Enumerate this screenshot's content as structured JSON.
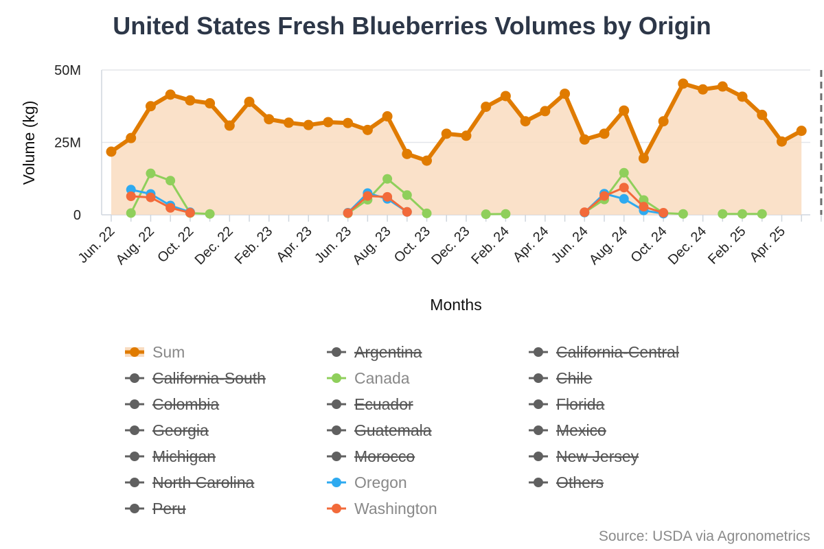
{
  "chart_data": {
    "type": "line",
    "title": "United States Fresh Blueberries Volumes by Origin",
    "xlabel": "Months",
    "ylabel": "Volume (kg)",
    "ylim": [
      0,
      50000000
    ],
    "y_ticks": [
      {
        "value": 0,
        "label": "0"
      },
      {
        "value": 25000000,
        "label": "25M"
      },
      {
        "value": 50000000,
        "label": "50M"
      }
    ],
    "x_tick_labels": [
      "Jun. 22",
      "Aug. 22",
      "Oct. 22",
      "Dec. 22",
      "Feb. 23",
      "Apr. 23",
      "Jun. 23",
      "Aug. 23",
      "Oct. 23",
      "Dec. 23",
      "Feb. 24",
      "Apr. 24",
      "Jun. 24",
      "Aug. 24",
      "Oct. 24",
      "Dec. 24",
      "Feb. 25",
      "Apr. 25"
    ],
    "x_start": "2022-06",
    "x_end": "2025-06",
    "grid": "horizontal",
    "legend_position": "bottom",
    "marker_line": "2025-06",
    "source": "Source: USDA via Agronometrics",
    "series": [
      {
        "name": "Sum",
        "color": "#e07b00",
        "area": true,
        "hidden": false,
        "points": [
          [
            "2022-06",
            21800000
          ],
          [
            "2022-07",
            26500000
          ],
          [
            "2022-08",
            37500000
          ],
          [
            "2022-09",
            41500000
          ],
          [
            "2022-10",
            39500000
          ],
          [
            "2022-11",
            38500000
          ],
          [
            "2022-12",
            30800000
          ],
          [
            "2023-01",
            39000000
          ],
          [
            "2023-02",
            33000000
          ],
          [
            "2023-03",
            31800000
          ],
          [
            "2023-04",
            31000000
          ],
          [
            "2023-05",
            32000000
          ],
          [
            "2023-06",
            31700000
          ],
          [
            "2023-07",
            29300000
          ],
          [
            "2023-08",
            34000000
          ],
          [
            "2023-09",
            21000000
          ],
          [
            "2023-10",
            18700000
          ],
          [
            "2023-11",
            28000000
          ],
          [
            "2023-12",
            27300000
          ],
          [
            "2024-01",
            37300000
          ],
          [
            "2024-02",
            41000000
          ],
          [
            "2024-03",
            32300000
          ],
          [
            "2024-04",
            35800000
          ],
          [
            "2024-05",
            41800000
          ],
          [
            "2024-06",
            26000000
          ],
          [
            "2024-07",
            28000000
          ],
          [
            "2024-08",
            36000000
          ],
          [
            "2024-09",
            19500000
          ],
          [
            "2024-10",
            32300000
          ],
          [
            "2024-11",
            45300000
          ],
          [
            "2024-12",
            43300000
          ],
          [
            "2025-01",
            44300000
          ],
          [
            "2025-02",
            40800000
          ],
          [
            "2025-03",
            34500000
          ],
          [
            "2025-04",
            25300000
          ],
          [
            "2025-05",
            29000000
          ]
        ]
      },
      {
        "name": "Argentina",
        "color": "#606060",
        "hidden": true,
        "points": []
      },
      {
        "name": "California-Central",
        "color": "#606060",
        "hidden": true,
        "points": []
      },
      {
        "name": "California-South",
        "color": "#606060",
        "hidden": true,
        "points": []
      },
      {
        "name": "Canada",
        "color": "#8fcf5b",
        "hidden": false,
        "points": [
          [
            "2022-07",
            600000
          ],
          [
            "2022-08",
            14300000
          ],
          [
            "2022-09",
            11800000
          ],
          [
            "2022-10",
            600000
          ],
          [
            "2022-11",
            300000
          ],
          [
            "2023-06",
            500000
          ],
          [
            "2023-07",
            5200000
          ],
          [
            "2023-08",
            12400000
          ],
          [
            "2023-09",
            6800000
          ],
          [
            "2023-10",
            500000
          ],
          [
            "2024-01",
            200000
          ],
          [
            "2024-02",
            300000
          ],
          [
            "2024-06",
            800000
          ],
          [
            "2024-07",
            5300000
          ],
          [
            "2024-08",
            14500000
          ],
          [
            "2024-09",
            5100000
          ],
          [
            "2024-10",
            600000
          ],
          [
            "2024-11",
            300000
          ],
          [
            "2025-01",
            300000
          ],
          [
            "2025-02",
            300000
          ],
          [
            "2025-03",
            300000
          ]
        ]
      },
      {
        "name": "Chile",
        "color": "#606060",
        "hidden": true,
        "points": []
      },
      {
        "name": "Colombia",
        "color": "#606060",
        "hidden": true,
        "points": []
      },
      {
        "name": "Ecuador",
        "color": "#606060",
        "hidden": true,
        "points": []
      },
      {
        "name": "Florida",
        "color": "#606060",
        "hidden": true,
        "points": []
      },
      {
        "name": "Georgia",
        "color": "#606060",
        "hidden": true,
        "points": []
      },
      {
        "name": "Guatemala",
        "color": "#606060",
        "hidden": true,
        "points": []
      },
      {
        "name": "Mexico",
        "color": "#606060",
        "hidden": true,
        "points": []
      },
      {
        "name": "Michigan",
        "color": "#606060",
        "hidden": true,
        "points": []
      },
      {
        "name": "Morocco",
        "color": "#606060",
        "hidden": true,
        "points": []
      },
      {
        "name": "New Jersey",
        "color": "#606060",
        "hidden": true,
        "points": []
      },
      {
        "name": "North Carolina",
        "color": "#606060",
        "hidden": true,
        "points": []
      },
      {
        "name": "Oregon",
        "color": "#2eaaf0",
        "hidden": false,
        "points": [
          [
            "2022-07",
            8700000
          ],
          [
            "2022-08",
            7200000
          ],
          [
            "2022-09",
            3200000
          ],
          [
            "2022-10",
            900000
          ],
          [
            "2023-06",
            700000
          ],
          [
            "2023-07",
            7500000
          ],
          [
            "2023-08",
            5500000
          ],
          [
            "2023-09",
            1000000
          ],
          [
            "2024-06",
            800000
          ],
          [
            "2024-07",
            7300000
          ],
          [
            "2024-08",
            5500000
          ],
          [
            "2024-09",
            1500000
          ],
          [
            "2024-10",
            400000
          ]
        ]
      },
      {
        "name": "Others",
        "color": "#606060",
        "hidden": true,
        "points": []
      },
      {
        "name": "Peru",
        "color": "#606060",
        "hidden": true,
        "points": []
      },
      {
        "name": "Washington",
        "color": "#f26a3a",
        "hidden": false,
        "points": [
          [
            "2022-07",
            6400000
          ],
          [
            "2022-08",
            6000000
          ],
          [
            "2022-09",
            2400000
          ],
          [
            "2022-10",
            700000
          ],
          [
            "2023-06",
            600000
          ],
          [
            "2023-07",
            6500000
          ],
          [
            "2023-08",
            6200000
          ],
          [
            "2023-09",
            1000000
          ],
          [
            "2024-06",
            900000
          ],
          [
            "2024-07",
            6500000
          ],
          [
            "2024-08",
            9400000
          ],
          [
            "2024-09",
            2800000
          ],
          [
            "2024-10",
            700000
          ]
        ]
      }
    ]
  }
}
